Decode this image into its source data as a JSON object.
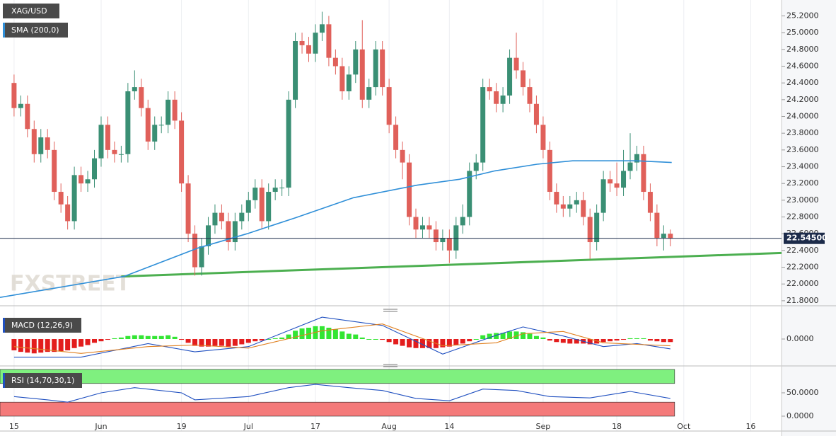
{
  "chart_data": [
    {
      "type": "candlestick",
      "title": "XAG/USD",
      "up_color": "#3a8f74",
      "down_color": "#e0605a",
      "open": [
        24.4,
        24.1,
        24.15,
        23.85,
        23.55,
        23.75,
        23.6,
        23.1,
        22.95,
        22.75,
        23.3,
        23.2,
        23.25,
        23.5,
        23.9,
        23.6,
        23.55,
        23.55,
        24.3,
        24.35,
        24.1,
        23.7,
        23.9,
        23.9,
        24.2,
        23.95,
        23.2,
        22.6,
        22.2,
        22.45,
        22.7,
        22.85,
        22.75,
        22.5,
        22.75,
        22.85,
        23.0,
        23.15,
        22.75,
        23.1,
        23.15,
        23.15,
        24.2,
        24.9,
        24.85,
        24.75,
        25.0,
        25.1,
        24.7,
        24.6,
        24.3,
        24.5,
        24.8,
        24.2,
        24.35,
        24.8,
        24.35,
        23.9,
        23.6,
        23.45,
        22.8,
        22.65,
        22.7,
        22.65,
        22.5,
        22.55,
        22.4,
        22.7,
        22.8,
        23.35,
        23.45,
        24.35,
        24.3,
        24.15,
        24.25,
        24.7,
        24.55,
        24.35,
        24.15,
        23.9,
        23.6,
        23.1,
        22.95,
        22.9,
        22.95,
        23.0,
        22.8,
        22.5,
        22.85,
        23.25,
        23.2,
        23.15,
        23.35,
        23.45,
        23.55,
        23.1,
        22.85,
        22.55,
        22.6
      ],
      "high": [
        24.5,
        24.25,
        24.25,
        23.95,
        23.85,
        23.85,
        23.7,
        23.2,
        23.05,
        23.4,
        23.4,
        23.35,
        23.6,
        24.0,
        24.0,
        23.7,
        23.65,
        24.4,
        24.55,
        24.45,
        24.2,
        24.0,
        24.0,
        24.3,
        24.3,
        24.05,
        23.3,
        22.7,
        22.55,
        22.8,
        22.95,
        22.95,
        22.85,
        22.85,
        22.95,
        23.1,
        23.25,
        23.25,
        23.2,
        23.25,
        23.25,
        24.3,
        25.0,
        25.0,
        24.95,
        25.1,
        25.25,
        25.2,
        24.8,
        24.7,
        24.6,
        24.9,
        25.15,
        24.45,
        24.9,
        24.9,
        24.45,
        24.0,
        23.7,
        23.55,
        22.9,
        22.8,
        22.8,
        22.75,
        22.65,
        22.65,
        22.8,
        22.95,
        23.45,
        23.55,
        24.45,
        24.45,
        24.4,
        24.35,
        24.8,
        25.0,
        24.65,
        24.45,
        24.25,
        24.0,
        23.7,
        23.2,
        23.05,
        23.05,
        23.1,
        23.1,
        22.9,
        22.95,
        23.35,
        23.35,
        23.45,
        23.6,
        23.8,
        23.65,
        23.65,
        23.2,
        22.95,
        22.7,
        22.65
      ],
      "low": [
        24.0,
        24.0,
        23.75,
        23.45,
        23.45,
        23.5,
        23.0,
        22.85,
        22.65,
        22.65,
        23.1,
        23.1,
        23.15,
        23.4,
        23.5,
        23.45,
        23.45,
        23.45,
        24.2,
        24.0,
        23.6,
        23.6,
        23.8,
        23.8,
        23.85,
        23.1,
        22.5,
        22.1,
        22.1,
        22.35,
        22.6,
        22.65,
        22.4,
        22.4,
        22.65,
        22.75,
        22.9,
        22.65,
        22.65,
        23.0,
        23.05,
        23.05,
        24.1,
        24.75,
        24.65,
        24.65,
        24.9,
        24.6,
        24.5,
        24.2,
        24.2,
        24.4,
        24.1,
        24.1,
        24.25,
        24.25,
        23.8,
        23.5,
        23.25,
        22.7,
        22.55,
        22.55,
        22.55,
        22.4,
        22.4,
        22.25,
        22.3,
        22.6,
        22.7,
        23.25,
        23.35,
        24.2,
        24.05,
        24.05,
        24.15,
        24.45,
        24.25,
        24.05,
        23.8,
        23.5,
        23.0,
        22.85,
        22.8,
        22.8,
        22.85,
        22.7,
        22.3,
        22.4,
        22.75,
        23.1,
        23.05,
        23.05,
        23.25,
        23.35,
        23.0,
        22.75,
        22.45,
        22.4,
        22.45
      ],
      "close": [
        24.1,
        24.15,
        23.85,
        23.55,
        23.75,
        23.6,
        23.1,
        22.95,
        22.75,
        23.3,
        23.2,
        23.25,
        23.5,
        23.9,
        23.6,
        23.55,
        23.55,
        24.3,
        24.35,
        24.1,
        23.7,
        23.9,
        23.9,
        24.2,
        23.95,
        23.2,
        22.6,
        22.2,
        22.45,
        22.7,
        22.85,
        22.75,
        22.5,
        22.75,
        22.85,
        23.0,
        23.15,
        22.75,
        23.1,
        23.15,
        23.15,
        24.2,
        24.9,
        24.85,
        24.75,
        25.0,
        25.1,
        24.7,
        24.6,
        24.3,
        24.5,
        24.8,
        24.2,
        24.35,
        24.8,
        24.35,
        23.9,
        23.6,
        23.45,
        22.8,
        22.65,
        22.7,
        22.65,
        22.5,
        22.55,
        22.4,
        22.7,
        22.8,
        23.35,
        23.45,
        24.35,
        24.3,
        24.15,
        24.25,
        24.7,
        24.55,
        24.35,
        24.15,
        23.9,
        23.6,
        23.1,
        22.95,
        22.9,
        22.95,
        23.0,
        22.8,
        22.5,
        22.85,
        23.25,
        23.2,
        23.15,
        23.35,
        23.45,
        23.55,
        23.1,
        22.85,
        22.55,
        22.6,
        22.545
      ],
      "sma": {
        "name": "SMA (200,0)",
        "color": "#2f8fd8",
        "x": [
          -2.1,
          16.4,
          27.5,
          34.8,
          42,
          50.7,
          60.2,
          66.5,
          71.8,
          78.1,
          83.4,
          92.9,
          98.2
        ],
        "values": [
          21.84,
          22.09,
          22.43,
          22.6,
          22.79,
          23.03,
          23.18,
          23.25,
          23.35,
          23.43,
          23.47,
          23.47,
          23.45
        ]
      },
      "trendline": {
        "color": "#4caf50",
        "x": [
          16,
          114.6
        ],
        "values": [
          22.09,
          22.37
        ]
      },
      "last_price": {
        "value": 22.545,
        "label": "22.54500"
      },
      "watermark": "FXSTREET",
      "xlim": [
        -2.1,
        114.6
      ],
      "ylim": [
        21.74,
        25.39
      ],
      "xticks": [
        {
          "value": 0,
          "label": "15"
        },
        {
          "value": 13,
          "label": "Jun"
        },
        {
          "value": 25,
          "label": "19"
        },
        {
          "value": 35,
          "label": "Jul"
        },
        {
          "value": 45,
          "label": "17"
        },
        {
          "value": 56,
          "label": "Aug"
        },
        {
          "value": 65,
          "label": "14"
        },
        {
          "value": 79,
          "label": "Sep"
        },
        {
          "value": 90,
          "label": "18"
        },
        {
          "value": 100,
          "label": "Oct"
        },
        {
          "value": 110,
          "label": "16"
        }
      ],
      "yticks": [
        {
          "value": 25.2,
          "label": "25.2000"
        },
        {
          "value": 25.0,
          "label": "25.0000"
        },
        {
          "value": 24.8,
          "label": "24.8000"
        },
        {
          "value": 24.6,
          "label": "24.6000"
        },
        {
          "value": 24.4,
          "label": "24.4000"
        },
        {
          "value": 24.2,
          "label": "24.2000"
        },
        {
          "value": 24.0,
          "label": "24.0000"
        },
        {
          "value": 23.8,
          "label": "23.8000"
        },
        {
          "value": 23.6,
          "label": "23.6000"
        },
        {
          "value": 23.4,
          "label": "23.4000"
        },
        {
          "value": 23.2,
          "label": "23.2000"
        },
        {
          "value": 23.0,
          "label": "23.0000"
        },
        {
          "value": 22.8,
          "label": "22.8000"
        },
        {
          "value": 22.6,
          "label": "22.6000"
        },
        {
          "value": 22.4,
          "label": "22.4000"
        },
        {
          "value": 22.2,
          "label": "22.2000"
        },
        {
          "value": 22.0,
          "label": "22.0000"
        },
        {
          "value": 21.8,
          "label": "21.8000"
        }
      ]
    },
    {
      "type": "macd",
      "title": "MACD (12,26,9)",
      "up_color": "#33e533",
      "down_color": "#e31d1d",
      "histogram": [
        -0.15,
        -0.17,
        -0.18,
        -0.19,
        -0.18,
        -0.17,
        -0.17,
        -0.16,
        -0.15,
        -0.12,
        -0.1,
        -0.08,
        -0.05,
        -0.03,
        -0.01,
        0.01,
        0.02,
        0.04,
        0.05,
        0.05,
        0.04,
        0.04,
        0.04,
        0.05,
        0.03,
        -0.01,
        -0.05,
        -0.09,
        -0.1,
        -0.1,
        -0.09,
        -0.09,
        -0.1,
        -0.09,
        -0.07,
        -0.05,
        -0.03,
        -0.02,
        0.0,
        0.01,
        0.02,
        0.06,
        0.11,
        0.14,
        0.15,
        0.17,
        0.17,
        0.15,
        0.13,
        0.1,
        0.07,
        0.06,
        0.02,
        0.0,
        0.0,
        -0.01,
        -0.04,
        -0.07,
        -0.09,
        -0.11,
        -0.12,
        -0.12,
        -0.12,
        -0.12,
        -0.11,
        -0.1,
        -0.08,
        -0.06,
        -0.03,
        0.0,
        0.05,
        0.07,
        0.08,
        0.08,
        0.1,
        0.1,
        0.09,
        0.07,
        0.04,
        0.02,
        -0.02,
        -0.04,
        -0.05,
        -0.06,
        -0.06,
        -0.06,
        -0.07,
        -0.06,
        -0.04,
        -0.03,
        -0.02,
        -0.01,
        0.01,
        0.01,
        0.01,
        -0.02,
        -0.03,
        -0.04,
        -0.04
      ],
      "series": [
        {
          "color": "#2050c0",
          "x": [
            0,
            10,
            20,
            27,
            35,
            46,
            55,
            64,
            72,
            76,
            82,
            88,
            93,
            98
          ],
          "values": [
            -0.24,
            -0.24,
            -0.06,
            -0.17,
            -0.1,
            0.29,
            0.18,
            -0.2,
            0.05,
            0.16,
            0.04,
            -0.1,
            -0.06,
            -0.13
          ]
        },
        {
          "color": "#e08020",
          "x": [
            0,
            10,
            20,
            27,
            35,
            46,
            55,
            64,
            72,
            76,
            82,
            88,
            93,
            98
          ],
          "values": [
            -0.1,
            -0.19,
            -0.1,
            -0.08,
            -0.12,
            0.11,
            0.2,
            -0.09,
            -0.05,
            0.07,
            0.1,
            -0.05,
            -0.07,
            -0.09
          ]
        }
      ],
      "ylim": [
        -0.3,
        0.3
      ],
      "yticks": [
        {
          "value": 0,
          "label": "0.0000"
        }
      ]
    },
    {
      "type": "rsi",
      "title": "RSI (14,70,30,1)",
      "upper_band": [
        70,
        100
      ],
      "lower_band": [
        0,
        30
      ],
      "upper_color": "#7ff07f",
      "lower_color": "#f47a7a",
      "series": [
        {
          "color": "#2050c0",
          "x": [
            0,
            5,
            8,
            13,
            18,
            25,
            27,
            35,
            41,
            45,
            50,
            55,
            60,
            65,
            70,
            75,
            80,
            86,
            92,
            98
          ],
          "values": [
            42,
            35,
            30,
            50,
            61,
            50,
            35,
            42,
            61,
            68,
            61,
            55,
            38,
            33,
            58,
            55,
            42,
            39,
            53,
            38
          ]
        }
      ],
      "ylim": [
        -25.8,
        101.5
      ],
      "yticks": [
        {
          "value": 50,
          "label": "50.0000"
        },
        {
          "value": 0,
          "label": "0.0000"
        }
      ]
    }
  ]
}
